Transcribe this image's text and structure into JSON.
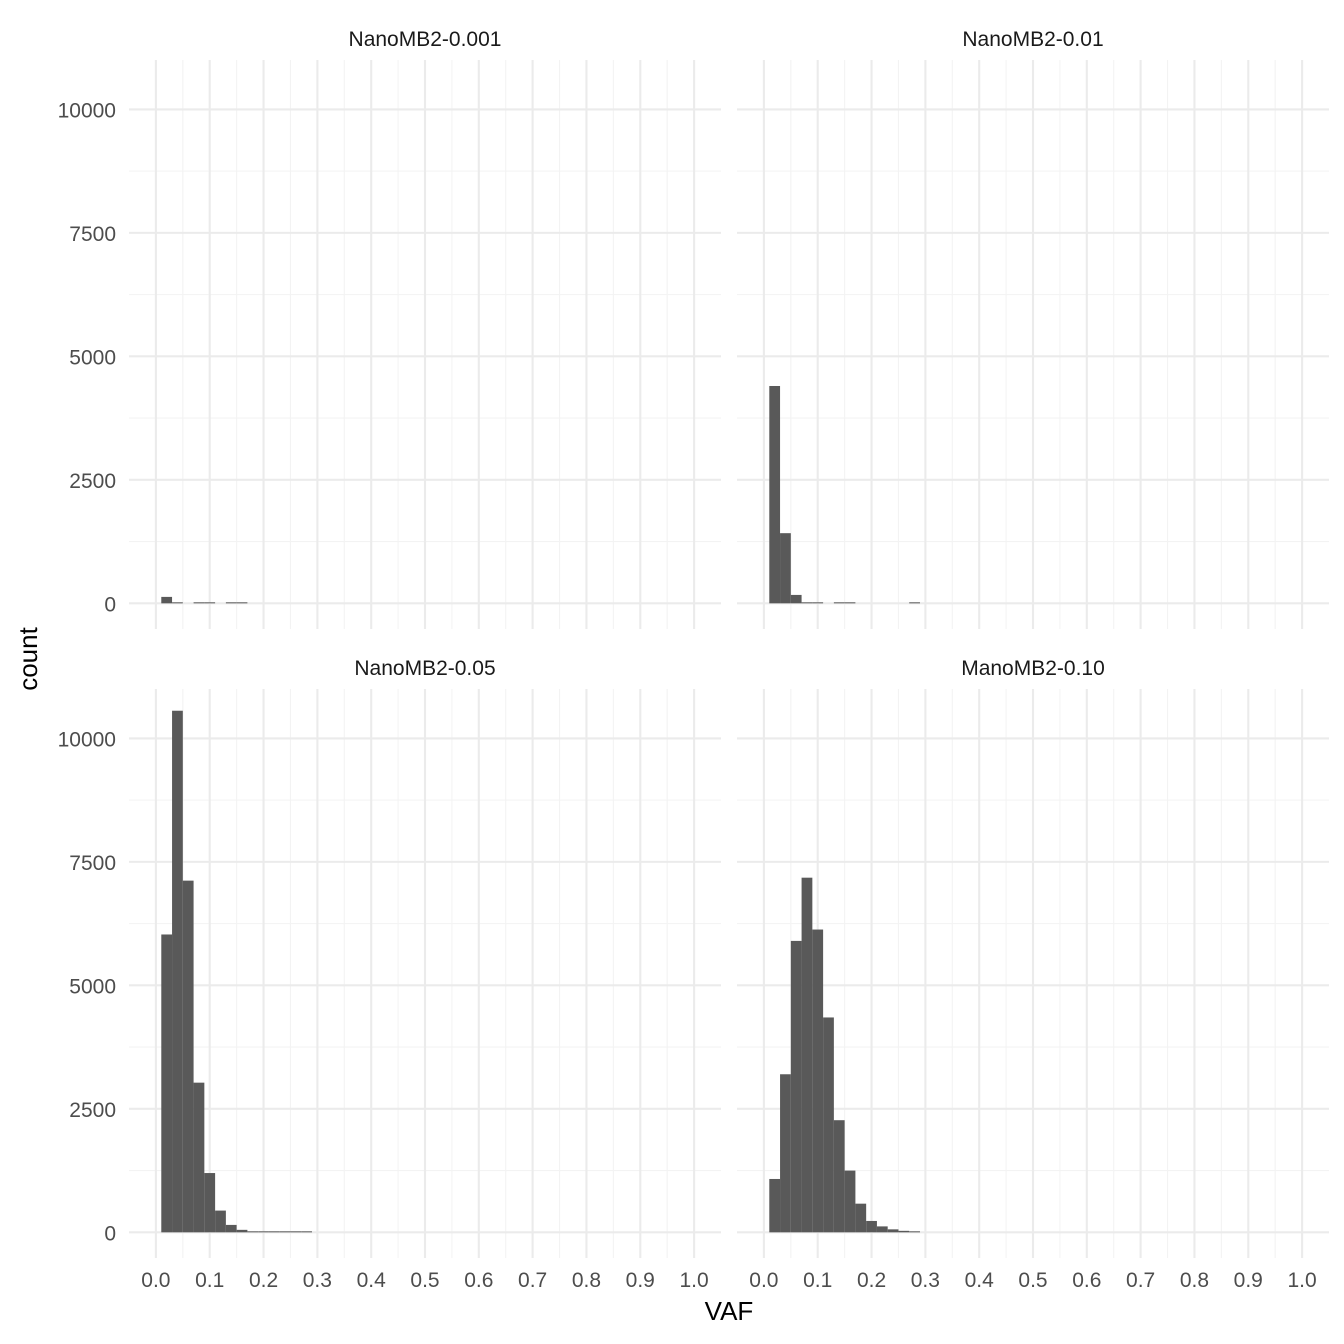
{
  "chart_data": {
    "type": "bar",
    "subtype": "faceted-histogram",
    "xlabel": "VAF",
    "ylabel": "count",
    "xlim": [
      -0.05,
      1.05
    ],
    "ylim": [
      -520,
      11000
    ],
    "x_ticks": [
      0.0,
      0.1,
      0.2,
      0.3,
      0.4,
      0.5,
      0.6,
      0.7,
      0.8,
      0.9,
      1.0
    ],
    "x_tick_labels": [
      "0.0",
      "0.1",
      "0.2",
      "0.3",
      "0.4",
      "0.5",
      "0.6",
      "0.7",
      "0.8",
      "0.9",
      "1.0"
    ],
    "y_ticks": [
      0,
      2500,
      5000,
      7500,
      10000
    ],
    "y_tick_labels": [
      "0",
      "2500",
      "5000",
      "7500",
      "10000"
    ],
    "bin_width": 0.02,
    "grid": true,
    "bar_color": "#595959",
    "panels": [
      {
        "label": "NanoMB2-0.001",
        "bins": [
          {
            "x0": 0.01,
            "x1": 0.03,
            "count": 130
          },
          {
            "x0": 0.03,
            "x1": 0.05,
            "count": 20
          },
          {
            "x0": 0.07,
            "x1": 0.09,
            "count": 10
          },
          {
            "x0": 0.09,
            "x1": 0.11,
            "count": 10
          },
          {
            "x0": 0.13,
            "x1": 0.15,
            "count": 10
          },
          {
            "x0": 0.15,
            "x1": 0.17,
            "count": 10
          }
        ]
      },
      {
        "label": "NanoMB2-0.01",
        "bins": [
          {
            "x0": 0.01,
            "x1": 0.03,
            "count": 4400
          },
          {
            "x0": 0.03,
            "x1": 0.05,
            "count": 1420
          },
          {
            "x0": 0.05,
            "x1": 0.07,
            "count": 170
          },
          {
            "x0": 0.07,
            "x1": 0.09,
            "count": 20
          },
          {
            "x0": 0.09,
            "x1": 0.11,
            "count": 10
          },
          {
            "x0": 0.13,
            "x1": 0.15,
            "count": 10
          },
          {
            "x0": 0.15,
            "x1": 0.17,
            "count": 10
          },
          {
            "x0": 0.27,
            "x1": 0.29,
            "count": 10
          }
        ]
      },
      {
        "label": "NanoMB2-0.05",
        "bins": [
          {
            "x0": 0.01,
            "x1": 0.03,
            "count": 6030
          },
          {
            "x0": 0.03,
            "x1": 0.05,
            "count": 10560
          },
          {
            "x0": 0.05,
            "x1": 0.07,
            "count": 7120
          },
          {
            "x0": 0.07,
            "x1": 0.09,
            "count": 3030
          },
          {
            "x0": 0.09,
            "x1": 0.11,
            "count": 1200
          },
          {
            "x0": 0.11,
            "x1": 0.13,
            "count": 440
          },
          {
            "x0": 0.13,
            "x1": 0.15,
            "count": 150
          },
          {
            "x0": 0.15,
            "x1": 0.17,
            "count": 50
          },
          {
            "x0": 0.17,
            "x1": 0.19,
            "count": 20
          },
          {
            "x0": 0.19,
            "x1": 0.21,
            "count": 10
          },
          {
            "x0": 0.21,
            "x1": 0.23,
            "count": 10
          },
          {
            "x0": 0.23,
            "x1": 0.25,
            "count": 10
          },
          {
            "x0": 0.25,
            "x1": 0.27,
            "count": 10
          },
          {
            "x0": 0.27,
            "x1": 0.29,
            "count": 10
          }
        ]
      },
      {
        "label": "ManoMB2-0.10",
        "bins": [
          {
            "x0": 0.01,
            "x1": 0.03,
            "count": 1080
          },
          {
            "x0": 0.03,
            "x1": 0.05,
            "count": 3200
          },
          {
            "x0": 0.05,
            "x1": 0.07,
            "count": 5900
          },
          {
            "x0": 0.07,
            "x1": 0.09,
            "count": 7180
          },
          {
            "x0": 0.09,
            "x1": 0.11,
            "count": 6130
          },
          {
            "x0": 0.11,
            "x1": 0.13,
            "count": 4350
          },
          {
            "x0": 0.13,
            "x1": 0.15,
            "count": 2270
          },
          {
            "x0": 0.15,
            "x1": 0.17,
            "count": 1250
          },
          {
            "x0": 0.17,
            "x1": 0.19,
            "count": 580
          },
          {
            "x0": 0.19,
            "x1": 0.21,
            "count": 230
          },
          {
            "x0": 0.21,
            "x1": 0.23,
            "count": 120
          },
          {
            "x0": 0.23,
            "x1": 0.25,
            "count": 60
          },
          {
            "x0": 0.25,
            "x1": 0.27,
            "count": 30
          },
          {
            "x0": 0.27,
            "x1": 0.29,
            "count": 20
          }
        ]
      }
    ]
  }
}
